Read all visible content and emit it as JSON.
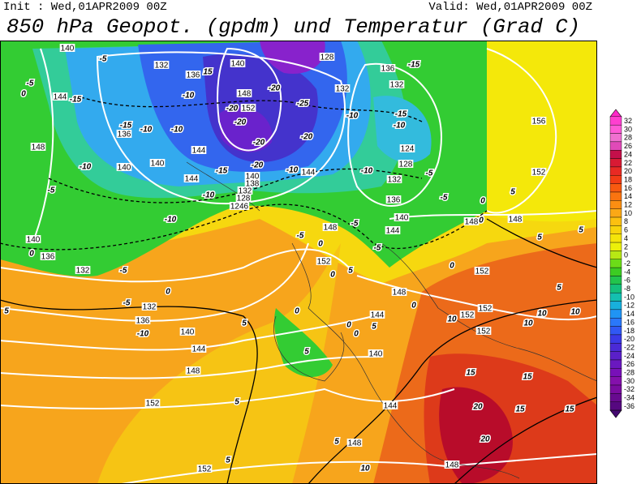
{
  "header": {
    "init": "Init : Wed,01APR2009 00Z",
    "valid": "Valid: Wed,01APR2009 00Z",
    "title": "850 hPa Geopot. (gpdm) und Temperatur (Grad C)"
  },
  "colorbar": {
    "labels": [
      32,
      30,
      28,
      26,
      24,
      22,
      20,
      18,
      16,
      14,
      12,
      10,
      8,
      6,
      4,
      2,
      0,
      -2,
      -4,
      -6,
      -8,
      -10,
      -12,
      -14,
      -16,
      -18,
      -20,
      -22,
      -24,
      -26,
      -28,
      -30,
      -32,
      -34,
      -36
    ]
  },
  "map": {
    "geopotential_labels": [
      140,
      132,
      136,
      140,
      128,
      136,
      132,
      148,
      152,
      132,
      144,
      136,
      148,
      140,
      140,
      144,
      144,
      140,
      138,
      132,
      128,
      1246,
      144,
      124,
      128,
      132,
      136,
      140,
      144,
      148,
      148,
      148,
      156,
      152,
      140,
      136,
      132,
      152,
      152,
      148,
      132,
      136,
      140,
      144,
      144,
      152,
      152,
      152,
      140,
      148,
      152,
      144,
      148,
      148,
      152
    ],
    "temperature_labels": [
      -5,
      -5,
      0,
      -15,
      15,
      -10,
      -20,
      -25,
      -20,
      -20,
      -10,
      -10,
      -15,
      -20,
      -20,
      -10,
      -15,
      -10,
      -15,
      -10,
      -5,
      -10,
      -15,
      -20,
      -10,
      -10,
      -10,
      -5,
      -5,
      0,
      5,
      0,
      -5,
      -5,
      0,
      0,
      5,
      -5,
      -10,
      5,
      0,
      0,
      0,
      5,
      5,
      0,
      -5,
      0,
      10,
      10,
      10,
      10,
      5,
      5,
      5,
      15,
      15,
      20,
      15,
      15,
      20,
      5,
      10,
      5,
      5,
      0,
      -5,
      5,
      0
    ]
  }
}
